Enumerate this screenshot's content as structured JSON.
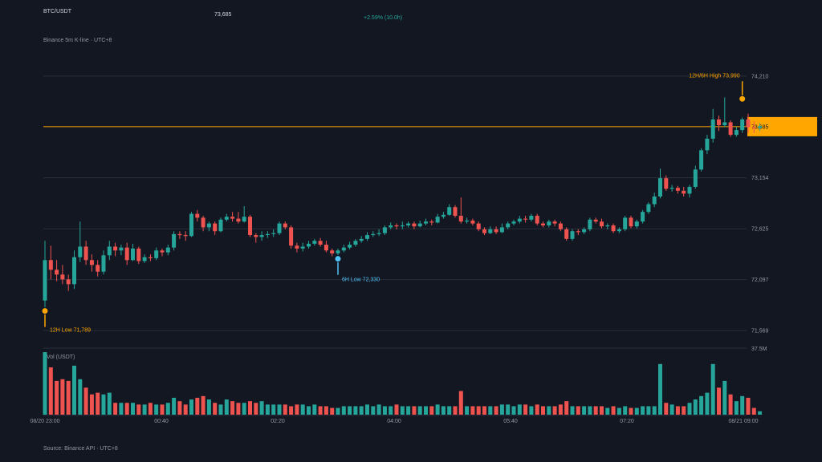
{
  "header": {
    "pair": "BTC/USDT",
    "last_price": "73,685",
    "change": "+2.59% (10.0h)",
    "source": "Binance 5m K-line · UTC+8"
  },
  "footer": {
    "source": "Source: Binance API · UTC+8"
  },
  "colors": {
    "up": "#26a69a",
    "down": "#ef5350",
    "accent": "#ffa600",
    "low_marker": "#4fc3f7",
    "background": "#131722"
  },
  "chart_data": {
    "type": "candlestick",
    "price_axis": {
      "ticks": [
        74210,
        73685,
        73154,
        72625,
        72097,
        71569
      ],
      "range": [
        71420,
        74400
      ],
      "current_price_label": "73,685"
    },
    "volume_axis": {
      "label": "Vol (USDT)",
      "top_tick": "37.5M",
      "max": 37.5
    },
    "time_axis": {
      "labels": [
        "08/20 23:00",
        "00:40",
        "02:20",
        "04:00",
        "05:40",
        "07:20",
        "08/21 09:00"
      ]
    },
    "current_price": 73685,
    "annotations": [
      {
        "type": "max",
        "candle": 119,
        "price": 73990,
        "label": "12H/6H High 73,990"
      },
      {
        "type": "min",
        "candle": 0,
        "price": 71789,
        "label": "12H Low 71,789"
      },
      {
        "type": "min6h",
        "candle": 50,
        "price": 72330,
        "label": "6H Low 72,330"
      }
    ],
    "candles": [
      [
        71880,
        72300,
        71789,
        72500,
        37
      ],
      [
        72300,
        72200,
        72100,
        72450,
        28
      ],
      [
        72200,
        72150,
        72080,
        72300,
        20
      ],
      [
        72150,
        72100,
        72050,
        72250,
        21
      ],
      [
        72100,
        72050,
        71980,
        72150,
        20
      ],
      [
        72050,
        72330,
        72000,
        72400,
        29
      ],
      [
        72330,
        72440,
        72280,
        72700,
        21
      ],
      [
        72440,
        72300,
        72250,
        72500,
        16
      ],
      [
        72300,
        72250,
        72180,
        72360,
        12
      ],
      [
        72250,
        72180,
        72130,
        72300,
        13
      ],
      [
        72180,
        72350,
        72150,
        72400,
        12
      ],
      [
        72350,
        72440,
        72300,
        72500,
        13
      ],
      [
        72440,
        72400,
        72340,
        72480,
        7
      ],
      [
        72400,
        72430,
        72350,
        72460,
        7
      ],
      [
        72430,
        72300,
        72250,
        72480,
        7
      ],
      [
        72300,
        72420,
        72290,
        72470,
        7
      ],
      [
        72420,
        72290,
        72260,
        72440,
        6
      ],
      [
        72290,
        72330,
        72270,
        72360,
        6
      ],
      [
        72330,
        72320,
        72290,
        72360,
        7
      ],
      [
        72320,
        72400,
        72300,
        72430,
        6
      ],
      [
        72400,
        72380,
        72340,
        72420,
        6
      ],
      [
        72380,
        72430,
        72350,
        72460,
        7
      ],
      [
        72430,
        72570,
        72400,
        72600,
        10
      ],
      [
        72570,
        72560,
        72520,
        72600,
        8
      ],
      [
        72560,
        72550,
        72500,
        72600,
        6
      ],
      [
        72550,
        72780,
        72540,
        72800,
        9
      ],
      [
        72780,
        72740,
        72700,
        72820,
        10
      ],
      [
        72740,
        72640,
        72600,
        72760,
        11
      ],
      [
        72640,
        72680,
        72600,
        72700,
        9
      ],
      [
        72680,
        72600,
        72560,
        72700,
        7
      ],
      [
        72600,
        72720,
        72590,
        72740,
        6
      ],
      [
        72720,
        72750,
        72700,
        72780,
        9
      ],
      [
        72750,
        72730,
        72700,
        72800,
        8
      ],
      [
        72730,
        72700,
        72680,
        72800,
        7
      ],
      [
        72700,
        72750,
        72690,
        72860,
        7
      ],
      [
        72750,
        72560,
        72540,
        72770,
        8
      ],
      [
        72560,
        72540,
        72480,
        72580,
        7
      ],
      [
        72540,
        72560,
        72500,
        72600,
        8
      ],
      [
        72560,
        72570,
        72530,
        72600,
        6
      ],
      [
        72570,
        72580,
        72540,
        72620,
        6
      ],
      [
        72580,
        72680,
        72560,
        72700,
        6
      ],
      [
        72680,
        72640,
        72620,
        72700,
        6
      ],
      [
        72640,
        72450,
        72420,
        72660,
        5
      ],
      [
        72450,
        72420,
        72380,
        72480,
        6
      ],
      [
        72420,
        72440,
        72390,
        72480,
        6
      ],
      [
        72440,
        72470,
        72420,
        72500,
        5
      ],
      [
        72470,
        72500,
        72450,
        72520,
        6
      ],
      [
        72500,
        72460,
        72440,
        72530,
        5
      ],
      [
        72460,
        72400,
        72380,
        72500,
        5
      ],
      [
        72400,
        72370,
        72340,
        72420,
        4
      ],
      [
        72370,
        72400,
        72330,
        72420,
        4
      ],
      [
        72400,
        72430,
        72380,
        72460,
        5
      ],
      [
        72430,
        72460,
        72410,
        72490,
        5
      ],
      [
        72460,
        72500,
        72440,
        72520,
        5
      ],
      [
        72500,
        72520,
        72480,
        72550,
        5
      ],
      [
        72520,
        72560,
        72500,
        72590,
        6
      ],
      [
        72560,
        72570,
        72540,
        72600,
        5
      ],
      [
        72570,
        72580,
        72550,
        72620,
        6
      ],
      [
        72580,
        72640,
        72560,
        72660,
        5
      ],
      [
        72640,
        72660,
        72620,
        72690,
        5
      ],
      [
        72660,
        72650,
        72620,
        72680,
        6
      ],
      [
        72650,
        72660,
        72620,
        72700,
        5
      ],
      [
        72660,
        72680,
        72640,
        72700,
        5
      ],
      [
        72680,
        72650,
        72620,
        72700,
        5
      ],
      [
        72650,
        72680,
        72640,
        72710,
        5
      ],
      [
        72680,
        72700,
        72660,
        72730,
        5
      ],
      [
        72700,
        72690,
        72660,
        72720,
        5
      ],
      [
        72690,
        72750,
        72680,
        72780,
        6
      ],
      [
        72750,
        72770,
        72730,
        72800,
        5
      ],
      [
        72770,
        72850,
        72760,
        72880,
        5
      ],
      [
        72850,
        72760,
        72740,
        72870,
        5
      ],
      [
        72760,
        72700,
        72680,
        72950,
        14
      ],
      [
        72700,
        72710,
        72680,
        72740,
        5
      ],
      [
        72710,
        72680,
        72660,
        72730,
        5
      ],
      [
        72680,
        72620,
        72600,
        72700,
        5
      ],
      [
        72620,
        72580,
        72560,
        72640,
        5
      ],
      [
        72580,
        72620,
        72570,
        72650,
        5
      ],
      [
        72620,
        72590,
        72570,
        72650,
        5
      ],
      [
        72590,
        72640,
        72580,
        72680,
        6
      ],
      [
        72640,
        72680,
        72620,
        72700,
        6
      ],
      [
        72680,
        72700,
        72660,
        72720,
        5
      ],
      [
        72700,
        72730,
        72680,
        72760,
        6
      ],
      [
        72730,
        72720,
        72690,
        72760,
        6
      ],
      [
        72720,
        72760,
        72700,
        72780,
        5
      ],
      [
        72760,
        72680,
        72660,
        72780,
        6
      ],
      [
        72680,
        72660,
        72640,
        72700,
        5
      ],
      [
        72660,
        72700,
        72640,
        72720,
        5
      ],
      [
        72700,
        72680,
        72650,
        72720,
        5
      ],
      [
        72680,
        72620,
        72600,
        72700,
        6
      ],
      [
        72620,
        72520,
        72500,
        72640,
        8
      ],
      [
        72520,
        72600,
        72500,
        72620,
        5
      ],
      [
        72600,
        72590,
        72560,
        72620,
        5
      ],
      [
        72590,
        72620,
        72570,
        72640,
        5
      ],
      [
        72620,
        72720,
        72600,
        72740,
        5
      ],
      [
        72720,
        72700,
        72680,
        72740,
        5
      ],
      [
        72700,
        72650,
        72630,
        72730,
        5
      ],
      [
        72650,
        72660,
        72620,
        72680,
        4
      ],
      [
        72660,
        72600,
        72580,
        72680,
        5
      ],
      [
        72600,
        72620,
        72580,
        72640,
        4
      ],
      [
        72620,
        72740,
        72600,
        72760,
        5
      ],
      [
        72740,
        72650,
        72630,
        72760,
        4
      ],
      [
        72650,
        72700,
        72630,
        72720,
        4
      ],
      [
        72700,
        72800,
        72680,
        72820,
        5
      ],
      [
        72800,
        72880,
        72780,
        72900,
        5
      ],
      [
        72880,
        72960,
        72850,
        73000,
        5
      ],
      [
        72960,
        73150,
        72940,
        73250,
        30
      ],
      [
        73150,
        73040,
        73020,
        73180,
        7
      ],
      [
        73040,
        73050,
        73010,
        73080,
        6
      ],
      [
        73050,
        73020,
        72990,
        73070,
        5
      ],
      [
        73020,
        72990,
        72960,
        73060,
        5
      ],
      [
        72990,
        73060,
        72950,
        73080,
        7
      ],
      [
        73060,
        73240,
        73040,
        73280,
        9
      ],
      [
        73240,
        73440,
        73220,
        73460,
        11
      ],
      [
        73440,
        73560,
        73400,
        73600,
        13
      ],
      [
        73560,
        73760,
        73520,
        73870,
        30
      ],
      [
        73760,
        73700,
        73640,
        73800,
        16
      ],
      [
        73700,
        73730,
        73680,
        73990,
        20
      ],
      [
        73730,
        73600,
        73580,
        73750,
        12
      ],
      [
        73600,
        73650,
        73580,
        73680,
        8
      ],
      [
        73650,
        73760,
        73620,
        73780,
        11
      ],
      [
        73760,
        73680,
        73620,
        73820,
        10
      ],
      [
        73680,
        73670,
        73620,
        73740,
        4
      ],
      [
        73670,
        73690,
        73640,
        73720,
        2
      ]
    ]
  }
}
